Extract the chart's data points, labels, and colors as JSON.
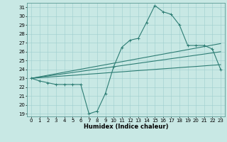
{
  "x": [
    0,
    1,
    2,
    3,
    4,
    5,
    6,
    7,
    8,
    9,
    10,
    11,
    12,
    13,
    14,
    15,
    16,
    17,
    18,
    19,
    20,
    21,
    22,
    23
  ],
  "y_main": [
    23.0,
    22.7,
    22.5,
    22.3,
    22.3,
    22.3,
    22.3,
    19.0,
    19.3,
    21.3,
    24.3,
    26.5,
    27.3,
    27.5,
    29.3,
    31.2,
    30.5,
    30.2,
    29.0,
    26.7,
    26.7,
    26.7,
    26.3,
    24.0
  ],
  "y_trend1": [
    23.0,
    23.07,
    23.13,
    23.2,
    23.27,
    23.33,
    23.4,
    23.47,
    23.53,
    23.6,
    23.67,
    23.73,
    23.8,
    23.87,
    23.93,
    24.0,
    24.07,
    24.13,
    24.2,
    24.27,
    24.33,
    24.4,
    24.47,
    24.53
  ],
  "y_trend2": [
    23.0,
    23.13,
    23.26,
    23.39,
    23.52,
    23.65,
    23.78,
    23.91,
    24.04,
    24.17,
    24.3,
    24.43,
    24.56,
    24.69,
    24.82,
    24.95,
    25.08,
    25.21,
    25.34,
    25.47,
    25.6,
    25.73,
    25.86,
    25.99
  ],
  "y_trend3": [
    23.0,
    23.17,
    23.34,
    23.51,
    23.68,
    23.85,
    24.02,
    24.19,
    24.36,
    24.53,
    24.7,
    24.87,
    25.04,
    25.21,
    25.38,
    25.55,
    25.72,
    25.89,
    26.06,
    26.23,
    26.4,
    26.57,
    26.74,
    26.91
  ],
  "line_color": "#2d7d74",
  "bg_color": "#c8e8e4",
  "grid_color": "#9ecece",
  "ylim_min": 19,
  "ylim_max": 31.5,
  "xlim_min": -0.5,
  "xlim_max": 23.5,
  "yticks": [
    19,
    20,
    21,
    22,
    23,
    24,
    25,
    26,
    27,
    28,
    29,
    30,
    31
  ],
  "xticks": [
    0,
    1,
    2,
    3,
    4,
    5,
    6,
    7,
    8,
    9,
    10,
    11,
    12,
    13,
    14,
    15,
    16,
    17,
    18,
    19,
    20,
    21,
    22,
    23
  ],
  "xlabel": "Humidex (Indice chaleur)",
  "xlabel_fontsize": 6,
  "tick_fontsize": 5,
  "marker": "+",
  "markersize": 3,
  "linewidth": 0.8
}
